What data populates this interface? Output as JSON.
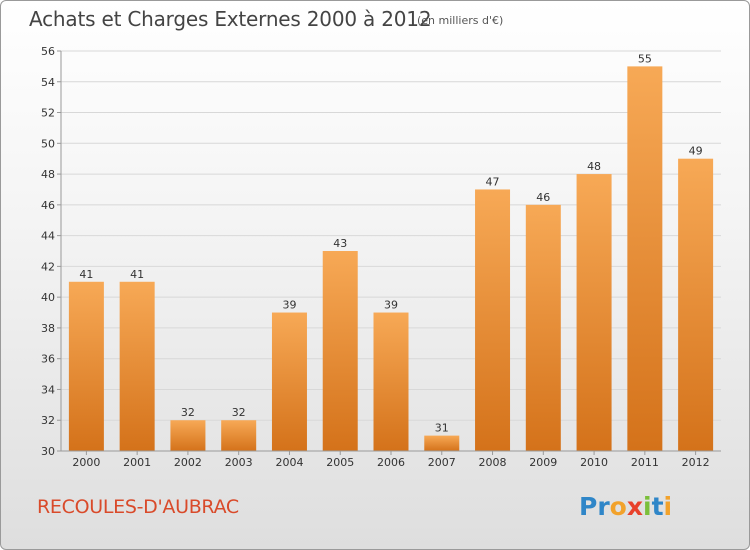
{
  "title": "Achats et Charges Externes 2000 à 2012",
  "subtitle": "(en milliers d'€)",
  "place": "RECOULES-D'AUBRAC",
  "logo_text": "Proxiti",
  "colors": {
    "bar": "#f39b45",
    "bar_dark": "#d4721a",
    "grid": "#d8d8d8",
    "axis": "#999999",
    "title": "#444444",
    "place": "#d94a2a"
  },
  "chart_data": {
    "type": "bar",
    "title": "Achats et Charges Externes 2000 à 2012",
    "subtitle": "(en milliers d'€)",
    "categories": [
      "2000",
      "2001",
      "2002",
      "2003",
      "2004",
      "2005",
      "2006",
      "2007",
      "2008",
      "2009",
      "2010",
      "2011",
      "2012"
    ],
    "values": [
      41,
      41,
      32,
      32,
      39,
      43,
      39,
      31,
      47,
      46,
      48,
      55,
      49
    ],
    "ylim": [
      30,
      56
    ],
    "yticks": [
      30,
      32,
      34,
      36,
      38,
      40,
      42,
      44,
      46,
      48,
      50,
      52,
      54,
      56
    ],
    "grid": true,
    "xlabel": "",
    "ylabel": ""
  }
}
